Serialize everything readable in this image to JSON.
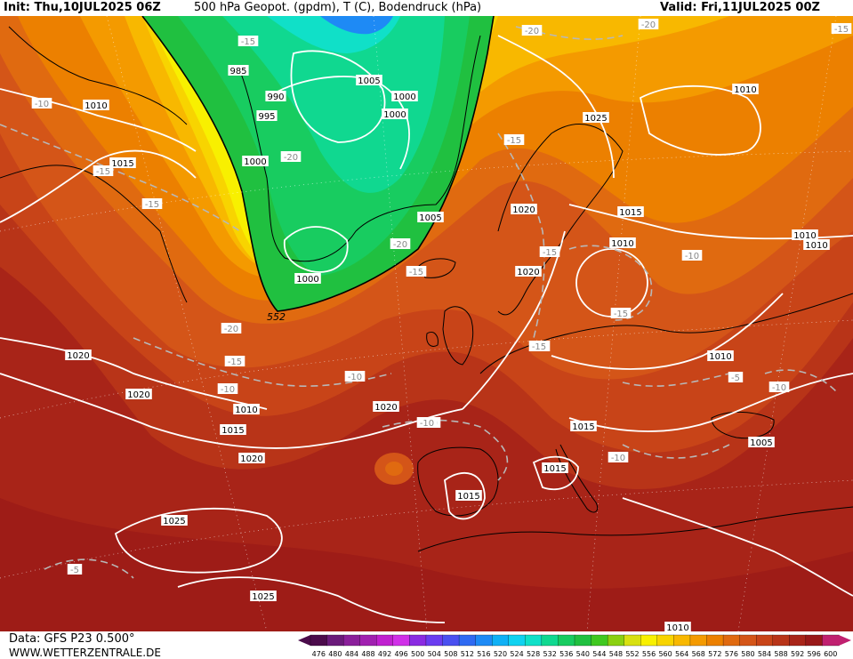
{
  "header": {
    "init": "Init: Thu,10JUL2025 06Z",
    "title": "500 hPa Geopot. (gpdm), T (C), Bodendruck (hPa)",
    "valid": "Valid: Fri,11JUL2025 00Z"
  },
  "footer": {
    "data_source": "Data: GFS P23 0.500°",
    "website": "WWW.WETTERZENTRALE.DE"
  },
  "legend": {
    "values": [
      "476",
      "480",
      "484",
      "488",
      "492",
      "496",
      "500",
      "504",
      "508",
      "512",
      "516",
      "520",
      "524",
      "528",
      "532",
      "536",
      "540",
      "544",
      "548",
      "552",
      "556",
      "560",
      "564",
      "568",
      "572",
      "576",
      "580",
      "584",
      "588",
      "592",
      "596",
      "600"
    ],
    "colors": [
      "#4b0b4b",
      "#6a1a7a",
      "#8a1f9a",
      "#a020b0",
      "#c020d0",
      "#d030e8",
      "#8a2be2",
      "#6a3cf0",
      "#4a50f0",
      "#2f6af2",
      "#1e8af5",
      "#10b0f5",
      "#10d2f0",
      "#10e0c8",
      "#10d890",
      "#18cc60",
      "#20c040",
      "#40c820",
      "#8ad010",
      "#d8e010",
      "#f8f000",
      "#f8d400",
      "#f8b800",
      "#f49a00",
      "#ec8000",
      "#e06a10",
      "#d45518",
      "#c84418",
      "#b83418",
      "#a82418",
      "#981818",
      "#c02070"
    ]
  },
  "map_labels": {
    "isobars": [
      "1010",
      "1015",
      "1020",
      "1020",
      "1020",
      "1010",
      "1015",
      "1020",
      "1025",
      "1025",
      "985",
      "990",
      "995",
      "1000",
      "1005",
      "1000",
      "1000",
      "1000",
      "1005",
      "1020",
      "1020",
      "1025",
      "1015",
      "1010",
      "1010",
      "1010",
      "1010",
      "1015",
      "1015",
      "1015",
      "1005",
      "1010",
      "1010"
    ],
    "temps": [
      "-15",
      "-10",
      "-15",
      "-15",
      "-20",
      "-20",
      "-20",
      "-15",
      "-20",
      "-15",
      "-15",
      "-10",
      "-10",
      "-10",
      "-15",
      "-15",
      "-15",
      "-10",
      "-10",
      "-5",
      "-10",
      "-5",
      "-15",
      "-20",
      "-15",
      "-10"
    ],
    "height_line": "552"
  }
}
